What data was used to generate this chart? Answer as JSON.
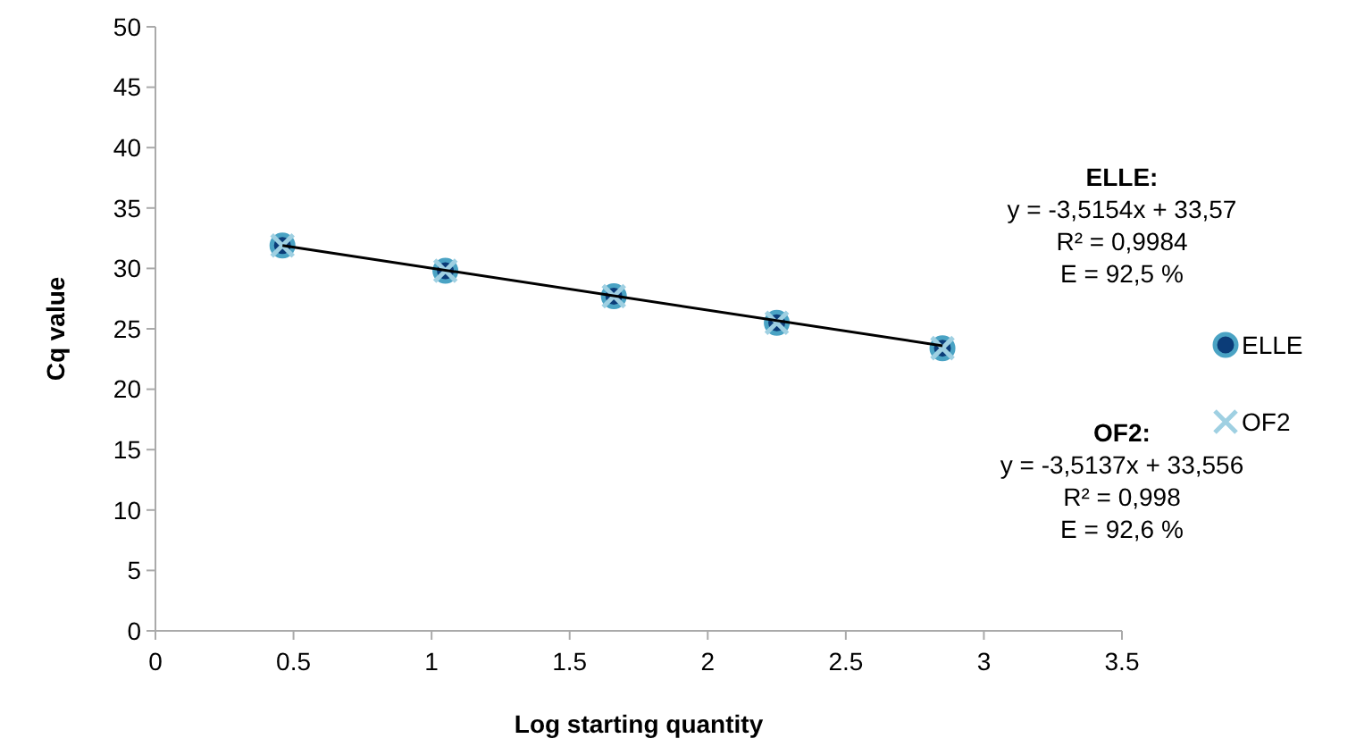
{
  "chart_data": {
    "type": "scatter",
    "xlabel": "Log starting quantity",
    "ylabel": "Cq value",
    "xlim": [
      0,
      3.5
    ],
    "xticks": [
      0,
      0.5,
      1,
      1.5,
      2,
      2.5,
      3,
      3.5
    ],
    "ylim": [
      0,
      50
    ],
    "yticks": [
      0,
      5,
      10,
      15,
      20,
      25,
      30,
      35,
      40,
      45,
      50
    ],
    "grid": false,
    "legend": "right",
    "series": [
      {
        "name": "ELLE",
        "marker": "circle",
        "color": "#0b3c78",
        "x": [
          0.46,
          1.05,
          1.66,
          2.25,
          2.85
        ],
        "values": [
          31.9,
          29.8,
          27.7,
          25.5,
          23.4
        ]
      },
      {
        "name": "OF2",
        "marker": "cross",
        "color": "#9fd0e2",
        "x": [
          0.46,
          1.05,
          1.66,
          2.25,
          2.85
        ],
        "values": [
          31.9,
          29.8,
          27.7,
          25.5,
          23.4
        ]
      },
      {
        "type": "line",
        "color": "#000000",
        "x": [
          0.46,
          2.85
        ],
        "values": [
          31.9,
          23.6
        ]
      }
    ],
    "annotations": [
      "ELLE:",
      "y = -3,5154x + 33,57",
      "R² = 0,9984",
      "E = 92,5 %",
      "OF2:",
      "y = -3,5137x + 33,556",
      "R² = 0,998",
      "E = 92,6 %"
    ]
  }
}
